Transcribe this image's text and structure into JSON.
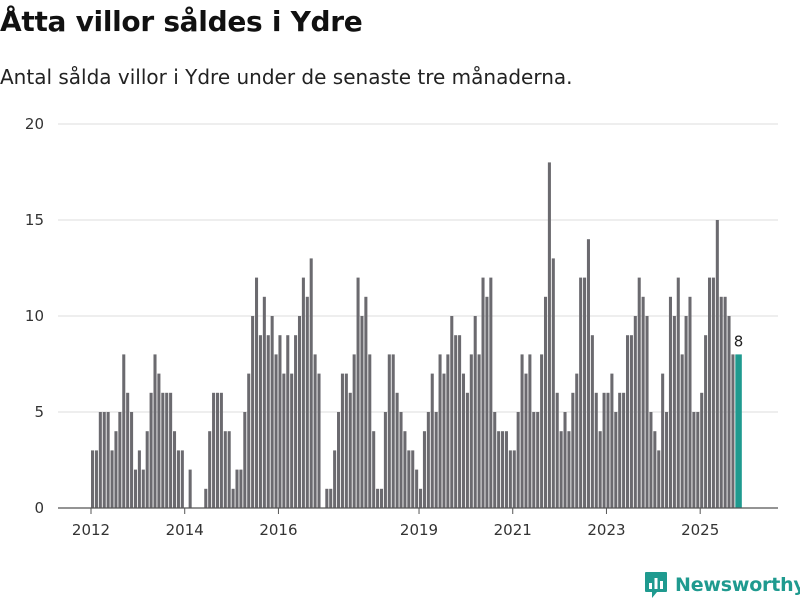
{
  "header": {
    "title": "Åtta villor såldes i Ydre",
    "subtitle": "Antal sålda villor i Ydre under de senaste tre månaderna."
  },
  "brand": {
    "name": "Newsworthy",
    "icon": "newsworthy-logo-icon",
    "color": "#1f9a8f"
  },
  "chart_data": {
    "type": "bar",
    "title": "Åtta villor såldes i Ydre",
    "subtitle": "Antal sålda villor i Ydre under de senaste tre månaderna.",
    "xlabel": "",
    "ylabel": "",
    "ylim": [
      0,
      20
    ],
    "yticks": [
      0,
      5,
      10,
      15,
      20
    ],
    "grid": true,
    "x_tick_labels": [
      "2012",
      "2014",
      "2016",
      "2019",
      "2021",
      "2023",
      "2025"
    ],
    "x_tick_positions": [
      2012,
      2014,
      2016,
      2019,
      2021,
      2023,
      2025
    ],
    "x_start": 2012.0,
    "x_step_years": 0.0833333,
    "colors": {
      "bar": "#6b6a6f",
      "highlight": "#1f9a8f",
      "grid": "#dddddd",
      "axis": "#555555"
    },
    "highlight_label": "8",
    "values": [
      3,
      3,
      5,
      5,
      5,
      3,
      4,
      5,
      8,
      6,
      5,
      2,
      3,
      2,
      4,
      6,
      8,
      7,
      6,
      6,
      6,
      4,
      3,
      3,
      0,
      2,
      0,
      0,
      0,
      1,
      4,
      6,
      6,
      6,
      4,
      4,
      1,
      2,
      2,
      5,
      7,
      10,
      12,
      9,
      11,
      9,
      10,
      8,
      9,
      7,
      9,
      7,
      9,
      10,
      12,
      11,
      13,
      8,
      7,
      0,
      1,
      1,
      3,
      5,
      7,
      7,
      6,
      8,
      12,
      10,
      11,
      8,
      4,
      1,
      1,
      5,
      8,
      8,
      6,
      5,
      4,
      3,
      3,
      2,
      1,
      4,
      5,
      7,
      5,
      8,
      7,
      8,
      10,
      9,
      9,
      7,
      6,
      8,
      10,
      8,
      12,
      11,
      12,
      5,
      4,
      4,
      4,
      3,
      3,
      5,
      8,
      7,
      8,
      5,
      5,
      8,
      11,
      18,
      13,
      6,
      4,
      5,
      4,
      6,
      7,
      12,
      12,
      14,
      9,
      6,
      4,
      6,
      6,
      7,
      5,
      6,
      6,
      9,
      9,
      10,
      12,
      11,
      10,
      5,
      4,
      3,
      7,
      5,
      11,
      10,
      12,
      8,
      10,
      11,
      5,
      5,
      6,
      9,
      12,
      12,
      15,
      11,
      11,
      10,
      8,
      8
    ]
  }
}
